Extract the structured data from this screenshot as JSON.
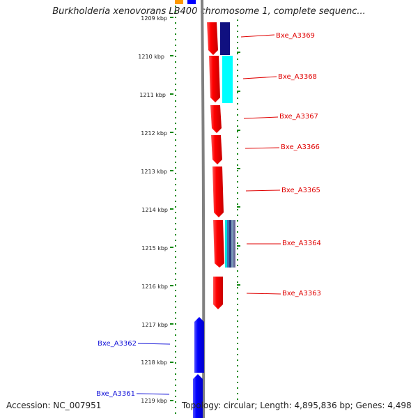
{
  "title": "Burkholderia xenovorans LB400 chromosome 1, complete sequenc...",
  "accession": "Accession: NC_007951",
  "summary": "Topology: circular; Length: 4,895,836 bp; Genes: 4,498",
  "ticks": [
    "1209 kbp",
    "1210 kbp",
    "1211 kbp",
    "1212 kbp",
    "1213 kbp",
    "1214 kbp",
    "1215 kbp",
    "1216 kbp",
    "1217 kbp",
    "1218 kbp",
    "1219 kbp"
  ],
  "genes_forward_red": [
    {
      "label": "Bxe_A3369"
    },
    {
      "label": "Bxe_A3368"
    },
    {
      "label": "Bxe_A3367"
    },
    {
      "label": "Bxe_A3366"
    },
    {
      "label": "Bxe_A3365"
    },
    {
      "label": "Bxe_A3364"
    },
    {
      "label": "Bxe_A3363"
    }
  ],
  "genes_reverse_blue": [
    {
      "label": "Bxe_A3362"
    },
    {
      "label": "Bxe_A3361"
    }
  ],
  "colors": {
    "forward_gene": "#ff0000",
    "reverse_gene": "#0000ff",
    "backbone": "#808080",
    "dotted_track": "#118811",
    "orange_feature": "#ff9900",
    "navy_feature": "#101080",
    "cyan_feature": "#00ffff"
  }
}
